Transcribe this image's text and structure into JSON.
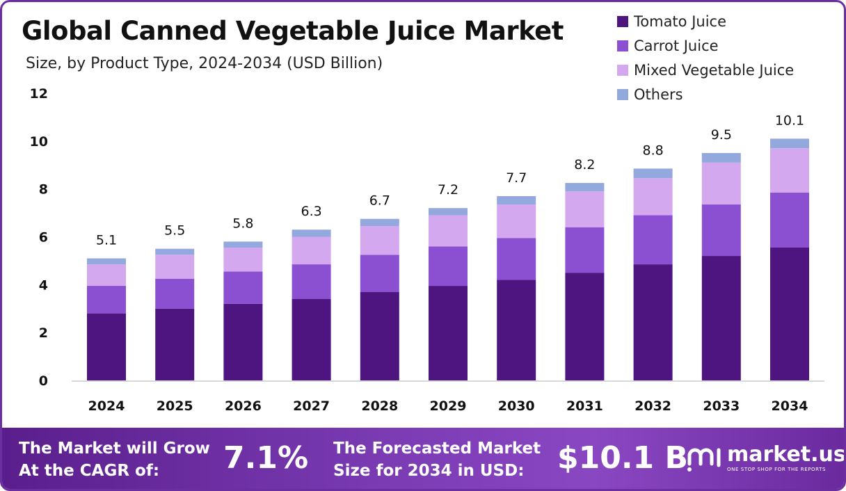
{
  "chart_data": {
    "type": "bar",
    "stacked": true,
    "title": "Global Canned Vegetable Juice Market",
    "subtitle": "Size, by Product Type, 2024-2034 (USD Billion)",
    "categories": [
      "2024",
      "2025",
      "2026",
      "2027",
      "2028",
      "2029",
      "2030",
      "2031",
      "2032",
      "2033",
      "2034"
    ],
    "series": [
      {
        "name": "Tomato Juice",
        "color": "#4e1580",
        "values": [
          2.8,
          3.0,
          3.2,
          3.4,
          3.7,
          3.95,
          4.2,
          4.5,
          4.85,
          5.2,
          5.55
        ]
      },
      {
        "name": "Carrot Juice",
        "color": "#8b4fd1",
        "values": [
          1.15,
          1.25,
          1.35,
          1.45,
          1.55,
          1.65,
          1.75,
          1.9,
          2.05,
          2.15,
          2.3
        ]
      },
      {
        "name": "Mixed Vegetable Juice",
        "color": "#d4a8ef",
        "values": [
          0.9,
          1.0,
          1.0,
          1.15,
          1.2,
          1.3,
          1.4,
          1.5,
          1.55,
          1.75,
          1.85
        ]
      },
      {
        "name": "Others",
        "color": "#93a9de",
        "values": [
          0.25,
          0.25,
          0.25,
          0.3,
          0.3,
          0.3,
          0.35,
          0.35,
          0.4,
          0.4,
          0.4
        ]
      }
    ],
    "totals": [
      "5.1",
      "5.5",
      "5.8",
      "6.3",
      "6.7",
      "7.2",
      "7.7",
      "8.2",
      "8.8",
      "9.5",
      "10.1"
    ],
    "ylim": [
      0,
      12
    ],
    "yticks": [
      0,
      2,
      4,
      6,
      8,
      10,
      12
    ],
    "legend_position": "top-right",
    "grid": false
  },
  "footer": {
    "cagr_label_line1": "The Market will Grow",
    "cagr_label_line2": "At the CAGR of:",
    "cagr_value": "7.1%",
    "forecast_label_line1": "The Forecasted Market",
    "forecast_label_line2": "Size for 2034 in USD:",
    "forecast_value": "$10.1 B"
  },
  "brand": {
    "logo_icon": "market-us-logo-icon",
    "name": "market.us",
    "tagline": "ONE STOP SHOP FOR THE REPORTS"
  }
}
